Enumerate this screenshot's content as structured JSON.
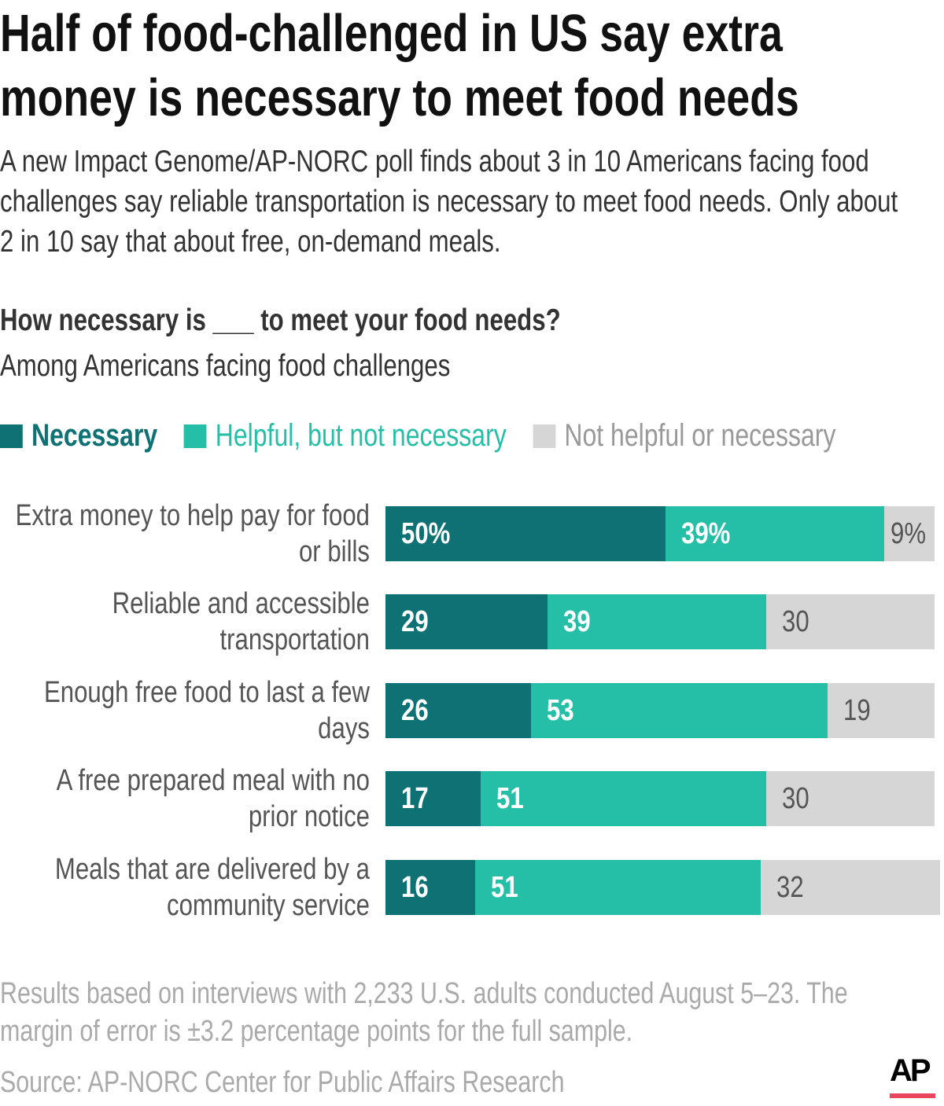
{
  "title": "Half of food-challenged in US say extra money is necessary to meet food needs",
  "subtitle": "A new Impact Genome/AP-NORC poll finds about 3 in 10 Americans facing food challenges say reliable transportation is necessary to meet food needs. Only about 2 in 10 say that about free, on-demand meals.",
  "question": "How necessary is ___ to meet your food needs?",
  "population": "Among Americans facing food challenges",
  "note": "Results based on interviews with 2,233 U.S. adults conducted August 5–23. The margin of error is ±3.2 percentage points for the full sample.",
  "source": "Source:  AP-NORC Center for Public Affairs Research",
  "logo": "AP",
  "chart_data": {
    "type": "bar",
    "orientation": "horizontal",
    "stacked": true,
    "categories": [
      "Extra money to help pay for food or bills",
      "Reliable and accessible transportation",
      "Enough free food to last a few days",
      "A free prepared meal with no prior notice",
      "Meals that are delivered by a community service"
    ],
    "series": [
      {
        "name": "Necessary",
        "color": "#0e7173",
        "values": [
          50,
          29,
          26,
          17,
          16
        ]
      },
      {
        "name": "Helpful, but not necessary",
        "color": "#25bfa7",
        "values": [
          39,
          39,
          53,
          51,
          51
        ]
      },
      {
        "name": "Not helpful or necessary",
        "color": "#d6d6d6",
        "values": [
          9,
          30,
          19,
          30,
          32
        ]
      }
    ],
    "first_row_labels": [
      "50%",
      "39%",
      "9%"
    ],
    "xlim": [
      0,
      100
    ],
    "legend": "top",
    "grid": false
  }
}
